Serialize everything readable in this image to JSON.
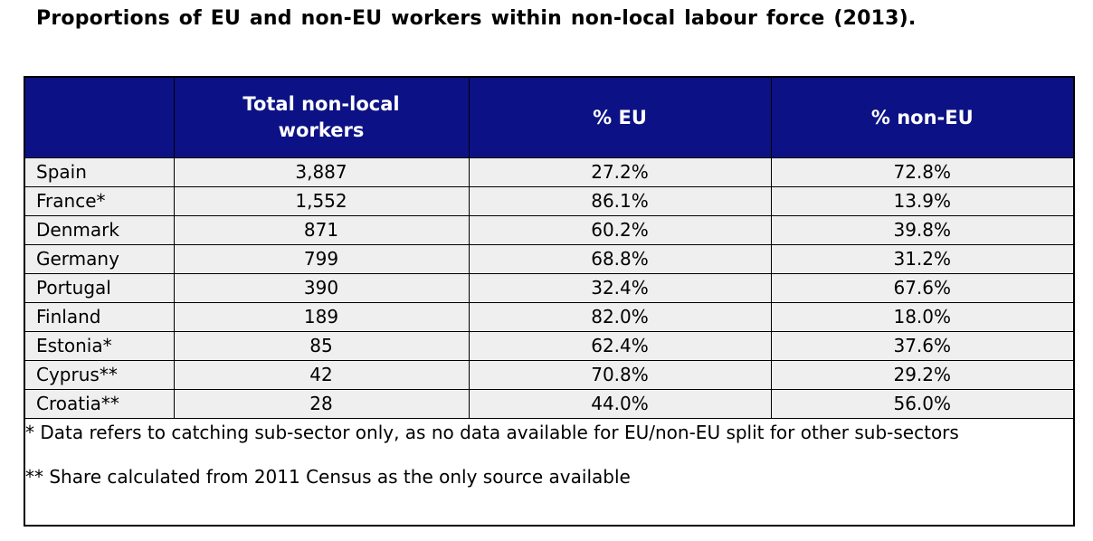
{
  "title": "Proportions of EU and non-EU workers within non-local labour force (2013).",
  "colors": {
    "header_bg": "#0C1285",
    "header_text": "#FFFFFF",
    "row_bg": "#EFEFEF",
    "border": "#000000",
    "page_bg": "#FFFFFF"
  },
  "table": {
    "columns": [
      "",
      "Total non-local workers",
      "% EU",
      "% non-EU"
    ],
    "rows": [
      [
        "Spain",
        "3,887",
        "27.2%",
        "72.8%"
      ],
      [
        "France*",
        "1,552",
        "86.1%",
        "13.9%"
      ],
      [
        "Denmark",
        "871",
        "60.2%",
        "39.8%"
      ],
      [
        "Germany",
        "799",
        "68.8%",
        "31.2%"
      ],
      [
        "Portugal",
        "390",
        "32.4%",
        "67.6%"
      ],
      [
        "Finland",
        "189",
        "82.0%",
        "18.0%"
      ],
      [
        "Estonia*",
        "85",
        "62.4%",
        "37.6%"
      ],
      [
        "Cyprus**",
        "42",
        "70.8%",
        "29.2%"
      ],
      [
        "Croatia**",
        "28",
        "44.0%",
        "56.0%"
      ]
    ],
    "footnotes": [
      "* Data refers to catching sub-sector only, as no data available for EU/non-EU split for other sub-sectors",
      "** Share calculated from 2011 Census as the only source available"
    ]
  },
  "chart_data": {
    "type": "table",
    "title": "Proportions of EU and non-EU workers within non-local labour force (2013).",
    "categories": [
      "Spain",
      "France*",
      "Denmark",
      "Germany",
      "Portugal",
      "Finland",
      "Estonia*",
      "Cyprus**",
      "Croatia**"
    ],
    "series": [
      {
        "name": "Total non-local workers",
        "values": [
          3887,
          1552,
          871,
          799,
          390,
          189,
          85,
          42,
          28
        ]
      },
      {
        "name": "% EU",
        "values": [
          27.2,
          86.1,
          60.2,
          68.8,
          32.4,
          82.0,
          62.4,
          70.8,
          44.0
        ]
      },
      {
        "name": "% non-EU",
        "values": [
          72.8,
          13.9,
          39.8,
          31.2,
          67.6,
          18.0,
          37.6,
          29.2,
          56.0
        ]
      }
    ]
  }
}
